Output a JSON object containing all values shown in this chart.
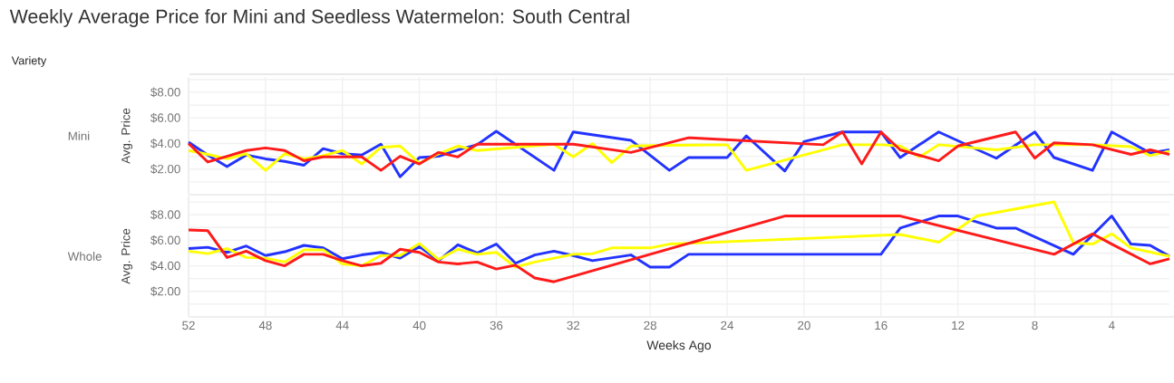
{
  "chart_data": [
    {
      "type": "line",
      "title": "Weekly Average Price for Mini and Seedless Watermelon: South Central",
      "subtitle": "Mini",
      "annotations": [
        "Variety"
      ],
      "ylabel": "Avg. Price",
      "xlim": [
        52,
        1
      ],
      "xticks": [
        52,
        48,
        44,
        40,
        36,
        32,
        28,
        24,
        20,
        16,
        12,
        8,
        4
      ],
      "ylim": [
        0,
        9.2
      ],
      "yticks": [
        {
          "value": 0,
          "label": null
        },
        {
          "value": 1,
          "label": null
        },
        {
          "value": 2,
          "label": "$2.00"
        },
        {
          "value": 3,
          "label": null
        },
        {
          "value": 4,
          "label": "$4.00"
        },
        {
          "value": 5,
          "label": null
        },
        {
          "value": 6,
          "label": "$6.00"
        },
        {
          "value": 7,
          "label": null
        },
        {
          "value": 8,
          "label": "$8.00"
        },
        {
          "value": 9,
          "label": null
        }
      ],
      "grid": true,
      "tick_labels": "y",
      "series": [
        {
          "color": "#2233ff",
          "x": [
            52,
            51,
            50,
            49,
            48,
            47,
            46,
            45,
            44,
            43,
            42,
            41,
            40,
            39,
            38,
            37,
            36,
            33,
            32,
            29,
            27,
            26,
            24,
            23,
            21,
            20,
            18,
            16,
            15,
            13,
            10,
            8,
            7,
            5,
            4,
            2,
            1
          ],
          "values": [
            4.1,
            3.1,
            2.2,
            3.1,
            2.8,
            2.6,
            2.3,
            3.6,
            3.2,
            3.1,
            3.95,
            1.4,
            2.9,
            3.0,
            3.5,
            3.9,
            4.95,
            1.9,
            4.9,
            4.25,
            1.9,
            2.9,
            2.9,
            4.6,
            1.85,
            4.15,
            4.9,
            4.9,
            2.9,
            4.9,
            2.85,
            4.9,
            2.9,
            1.9,
            4.9,
            3.25,
            3.5
          ]
        },
        {
          "color": "#ffff00",
          "x": [
            52,
            51,
            50,
            49,
            48,
            47,
            46,
            45,
            44,
            43,
            42,
            41,
            40,
            39,
            38,
            37,
            33,
            32,
            31,
            30,
            29,
            27,
            24,
            23,
            18,
            16,
            15,
            14,
            13,
            10,
            8,
            5,
            3,
            2,
            1
          ],
          "values": [
            3.45,
            3.15,
            2.8,
            3.2,
            1.9,
            3.2,
            2.8,
            3.05,
            3.45,
            2.4,
            3.7,
            3.8,
            2.45,
            3.2,
            3.8,
            3.45,
            3.95,
            2.95,
            4.0,
            2.5,
            3.8,
            3.85,
            3.9,
            1.9,
            3.9,
            3.9,
            3.8,
            2.95,
            3.9,
            3.5,
            3.9,
            3.9,
            3.75,
            3.05,
            3.4
          ]
        },
        {
          "color": "#ff1a1a",
          "x": [
            52,
            51,
            50,
            49,
            48,
            47,
            46,
            45,
            44,
            43,
            42,
            41,
            40,
            39,
            38,
            37,
            32,
            29,
            26,
            19,
            18,
            17,
            16,
            15,
            13,
            12,
            9,
            8,
            7,
            5,
            3,
            2,
            1
          ],
          "values": [
            4.0,
            2.55,
            3.0,
            3.45,
            3.65,
            3.45,
            2.65,
            2.95,
            2.95,
            2.95,
            1.9,
            3.0,
            2.4,
            3.3,
            2.95,
            3.95,
            3.95,
            3.3,
            4.45,
            3.9,
            4.9,
            2.4,
            4.9,
            3.5,
            2.65,
            3.8,
            4.9,
            2.85,
            4.05,
            3.9,
            3.15,
            3.5,
            3.15
          ]
        }
      ]
    },
    {
      "type": "line",
      "subtitle": "Whole",
      "xlabel": "Weeks Ago",
      "ylabel": "Avg. Price",
      "xlim": [
        52,
        1
      ],
      "xticks": [
        52,
        48,
        44,
        40,
        36,
        32,
        28,
        24,
        20,
        16,
        12,
        8,
        4
      ],
      "ylim": [
        0,
        9.5
      ],
      "yticks": [
        {
          "value": 0,
          "label": null
        },
        {
          "value": 1,
          "label": null
        },
        {
          "value": 2,
          "label": "$2.00"
        },
        {
          "value": 3,
          "label": null
        },
        {
          "value": 4,
          "label": "$4.00"
        },
        {
          "value": 5,
          "label": null
        },
        {
          "value": 6,
          "label": "$6.00"
        },
        {
          "value": 7,
          "label": null
        },
        {
          "value": 8,
          "label": "$8.00"
        },
        {
          "value": 9,
          "label": null
        }
      ],
      "grid": true,
      "series": [
        {
          "color": "#2233ff",
          "x": [
            52,
            51,
            50,
            49,
            48,
            47,
            46,
            45,
            44,
            43,
            42,
            41,
            40,
            39,
            38,
            37,
            36,
            35,
            34,
            33,
            32,
            31,
            29,
            28,
            27,
            26,
            16,
            15,
            13,
            12,
            10,
            9,
            6,
            4,
            3,
            2,
            1
          ],
          "values": [
            5.35,
            5.45,
            5.05,
            5.55,
            4.8,
            5.1,
            5.6,
            5.4,
            4.55,
            4.85,
            5.05,
            4.6,
            5.5,
            4.4,
            5.65,
            5.0,
            5.7,
            4.2,
            4.85,
            5.15,
            4.8,
            4.4,
            4.85,
            3.9,
            3.9,
            4.9,
            4.9,
            6.95,
            7.9,
            7.9,
            6.95,
            6.95,
            4.9,
            7.9,
            5.7,
            5.6,
            4.75
          ]
        },
        {
          "color": "#ffff00",
          "x": [
            52,
            51,
            50,
            49,
            48,
            47,
            46,
            45,
            44,
            43,
            42,
            41,
            40,
            39,
            38,
            37,
            36,
            35,
            34,
            32,
            31,
            30,
            28,
            27,
            15,
            13,
            11,
            7,
            6,
            5,
            4,
            3,
            1
          ],
          "values": [
            5.15,
            4.95,
            5.35,
            4.65,
            4.6,
            4.3,
            5.25,
            5.25,
            4.15,
            4.0,
            4.8,
            4.8,
            5.75,
            4.5,
            5.3,
            4.9,
            5.05,
            3.9,
            4.3,
            4.9,
            4.95,
            5.4,
            5.4,
            5.7,
            6.45,
            5.85,
            7.9,
            9.0,
            5.8,
            5.7,
            6.5,
            5.4,
            4.75
          ]
        },
        {
          "color": "#ff1a1a",
          "x": [
            52,
            51,
            50,
            49,
            48,
            47,
            46,
            45,
            44,
            43,
            42,
            41,
            40,
            39,
            38,
            37,
            36,
            35,
            34,
            33,
            21,
            15,
            7,
            5,
            4,
            2,
            1
          ],
          "values": [
            6.8,
            6.75,
            4.65,
            5.15,
            4.4,
            4.0,
            4.9,
            4.9,
            4.4,
            4.0,
            4.2,
            5.3,
            5.05,
            4.3,
            4.15,
            4.3,
            3.75,
            4.05,
            3.05,
            2.75,
            7.9,
            7.9,
            4.9,
            6.5,
            5.7,
            4.15,
            4.55
          ]
        }
      ]
    }
  ]
}
